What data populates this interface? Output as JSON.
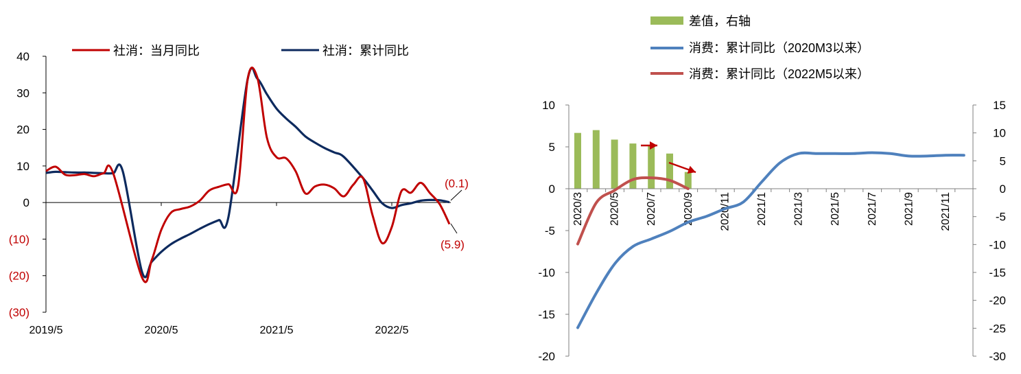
{
  "chart_data": [
    {
      "type": "line",
      "series": [
        {
          "name": "社消：当月同比",
          "color": "#c00000",
          "points": [
            [
              "2019-05",
              8.6
            ],
            [
              "2019-06",
              9.8
            ],
            [
              "2019-07",
              7.6
            ],
            [
              "2019-08",
              7.5
            ],
            [
              "2019-09",
              7.8
            ],
            [
              "2019-10",
              7.2
            ],
            [
              "2019-11",
              8.0
            ],
            [
              "2019-12",
              8.0
            ],
            [
              "2020-03",
              -20.5
            ],
            [
              "2020-04",
              -15.8
            ],
            [
              "2020-05",
              -7.5
            ],
            [
              "2020-06",
              -2.8
            ],
            [
              "2020-07",
              -1.8
            ],
            [
              "2020-08",
              -1.1
            ],
            [
              "2020-09",
              0.5
            ],
            [
              "2020-10",
              3.3
            ],
            [
              "2020-11",
              4.3
            ],
            [
              "2020-12",
              5.0
            ],
            [
              "2021-01",
              4.5
            ],
            [
              "2021-02",
              33.8
            ],
            [
              "2021-03",
              34.2
            ],
            [
              "2021-04",
              17.7
            ],
            [
              "2021-05",
              12.4
            ],
            [
              "2021-06",
              12.1
            ],
            [
              "2021-07",
              8.5
            ],
            [
              "2021-08",
              2.5
            ],
            [
              "2021-09",
              4.4
            ],
            [
              "2021-10",
              4.9
            ],
            [
              "2021-11",
              3.9
            ],
            [
              "2021-12",
              1.7
            ],
            [
              "2022-01",
              4.9
            ],
            [
              "2022-02",
              6.7
            ],
            [
              "2022-03",
              -3.5
            ],
            [
              "2022-04",
              -11.1
            ],
            [
              "2022-05",
              -6.7
            ],
            [
              "2022-06",
              3.1
            ],
            [
              "2022-07",
              2.7
            ],
            [
              "2022-08",
              5.4
            ],
            [
              "2022-09",
              2.5
            ],
            [
              "2022-10",
              -0.5
            ],
            [
              "2022-11",
              -5.9
            ]
          ]
        },
        {
          "name": "社消：累计同比",
          "color": "#0d2a5e",
          "points": [
            [
              "2019-05",
              8.1
            ],
            [
              "2019-06",
              8.4
            ],
            [
              "2019-07",
              8.3
            ],
            [
              "2019-08",
              8.2
            ],
            [
              "2019-09",
              8.2
            ],
            [
              "2019-10",
              8.1
            ],
            [
              "2019-11",
              8.0
            ],
            [
              "2019-12",
              8.0
            ],
            [
              "2020-01",
              8.5
            ],
            [
              "2020-03",
              -19.0
            ],
            [
              "2020-04",
              -16.2
            ],
            [
              "2020-05",
              -13.5
            ],
            [
              "2020-06",
              -11.4
            ],
            [
              "2020-07",
              -9.9
            ],
            [
              "2020-08",
              -8.6
            ],
            [
              "2020-09",
              -7.2
            ],
            [
              "2020-10",
              -5.9
            ],
            [
              "2020-11",
              -4.8
            ],
            [
              "2020-12",
              -3.9
            ],
            [
              "2021-02",
              33.8
            ],
            [
              "2021-03",
              33.9
            ],
            [
              "2021-04",
              29.6
            ],
            [
              "2021-05",
              25.7
            ],
            [
              "2021-06",
              23.0
            ],
            [
              "2021-07",
              20.7
            ],
            [
              "2021-08",
              18.1
            ],
            [
              "2021-09",
              16.4
            ],
            [
              "2021-10",
              14.9
            ],
            [
              "2021-11",
              13.7
            ],
            [
              "2021-12",
              12.5
            ],
            [
              "2022-02",
              6.7
            ],
            [
              "2022-03",
              3.3
            ],
            [
              "2022-04",
              -0.2
            ],
            [
              "2022-05",
              -1.5
            ],
            [
              "2022-06",
              -0.7
            ],
            [
              "2022-07",
              -0.2
            ],
            [
              "2022-08",
              0.5
            ],
            [
              "2022-09",
              0.7
            ],
            [
              "2022-10",
              0.6
            ],
            [
              "2022-11",
              0.1
            ]
          ]
        }
      ],
      "x_ticks": [
        "2019/5",
        "2020/5",
        "2021/5",
        "2022/5"
      ],
      "ylim": [
        -30,
        40
      ],
      "y_ticks": [
        "(30)",
        "(20)",
        "(10)",
        "0",
        "10",
        "20",
        "30",
        "40"
      ],
      "annotations": [
        "(0.1)",
        "(5.9)"
      ],
      "legend_position": "top"
    },
    {
      "type": "bar+line",
      "categories": [
        "2020/3",
        "2020/4",
        "2020/5",
        "2020/6",
        "2020/7",
        "2020/8",
        "2020/9",
        "2020/10",
        "2020/11",
        "2020/12",
        "2021/1",
        "2021/2",
        "2021/3",
        "2021/4",
        "2021/5",
        "2021/6",
        "2021/7",
        "2021/8",
        "2021/9",
        "2021/10",
        "2021/11",
        "2021/12"
      ],
      "x_tick_labels": [
        "2020/3",
        "2020/5",
        "2020/7",
        "2020/9",
        "2020/11",
        "2021/1",
        "2021/3",
        "2021/5",
        "2021/7",
        "2021/9",
        "2021/11"
      ],
      "bar_series": {
        "name": "差值，右轴",
        "color": "#9bbb59",
        "axis": "right",
        "values": [
          10.0,
          10.5,
          8.8,
          8.1,
          7.7,
          6.3,
          3.0
        ]
      },
      "line_series": [
        {
          "name": "消费：累计同比（2020M3以来）",
          "color": "#4f81bd",
          "axis": "left",
          "values": [
            -16.6,
            -12.5,
            -9.0,
            -6.9,
            -6.0,
            -5.1,
            -4.0,
            -3.3,
            -2.4,
            -1.6,
            0.8,
            3.1,
            4.2,
            4.2,
            4.2,
            4.2,
            4.3,
            4.2,
            3.9,
            3.9,
            4.0,
            4.0
          ]
        },
        {
          "name": "消费：累计同比（2022M5以来）",
          "color": "#c0504d",
          "axis": "left",
          "values": [
            -6.6,
            -1.7,
            -0.2,
            1.1,
            1.3,
            1.0,
            0.0
          ]
        }
      ],
      "ylim_left": [
        -20,
        10
      ],
      "y_ticks_left": [
        "-20",
        "-15",
        "-10",
        "-5",
        "0",
        "5",
        "10"
      ],
      "ylim_right": [
        -30,
        15
      ],
      "y_ticks_right": [
        "-30",
        "-25",
        "-20",
        "-15",
        "-10",
        "-5",
        "0",
        "5",
        "10",
        "15"
      ],
      "arrows_color": "#c00000",
      "legend_position": "top"
    }
  ]
}
